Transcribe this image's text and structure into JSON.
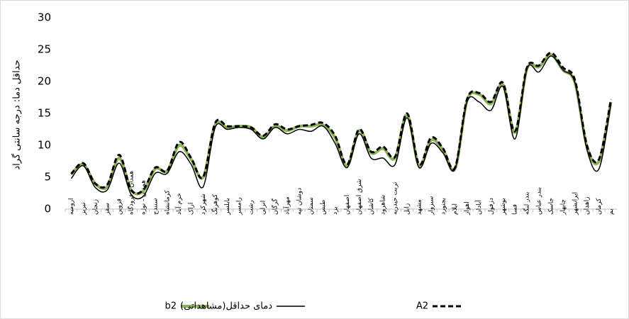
{
  "chart_data": {
    "type": "line",
    "y_label": "حداقل دما: درجه سانتی گراد",
    "categories": [
      "ارومیه",
      "تبریز",
      "زنجان",
      "سقز",
      "قزوین",
      "همدان - فرودگاه",
      "همدان - نوژه",
      "سنندج",
      "کرمانشاه",
      "خرم آباد",
      "اراک",
      "شهرکرد",
      "کوهرنگ",
      "بابلسر",
      "رامسر",
      "رشت",
      "انزلی",
      "گرگان",
      "مهرآباد",
      "دوشان تپه",
      "سمنان",
      "طبس",
      "یزد",
      "اصفهان",
      "شرق اصفهان",
      "کاشان",
      "شاهرود",
      "تربت حیدریه",
      "زابل",
      "مشهد",
      "سبزوار",
      "بجنورد",
      "ایلام",
      "اهواز",
      "آبادان",
      "دزفول",
      "بوشهر",
      "فسا",
      "بندر لنگه",
      "بندر عباس",
      "جاسک",
      "چابهار",
      "ایرانشهر",
      "زاهدان",
      "کرمان",
      "بم"
    ],
    "series": [
      {
        "name": "b2",
        "color": "#8db359",
        "style": "solid",
        "width": 4,
        "values": [
          5.5,
          7,
          4,
          3.5,
          8,
          3,
          2.8,
          6.3,
          6,
          10,
          7.8,
          5,
          13.2,
          12.8,
          13,
          12.8,
          11.3,
          13,
          12.3,
          13,
          13,
          13.2,
          11.2,
          6.8,
          12.3,
          8.8,
          9.5,
          8,
          14.8,
          6.8,
          10.8,
          9.3,
          6.3,
          17,
          18,
          16.5,
          19.5,
          12,
          22,
          22.3,
          24.2,
          21.8,
          19.8,
          9.8,
          7.5,
          16.8
        ]
      },
      {
        "name": "دمای حداقل(مشاهداتی)",
        "color": "#000000",
        "style": "solid",
        "width": 1.5,
        "values": [
          4.8,
          6.8,
          3.4,
          3,
          7.2,
          2.3,
          2,
          5.6,
          5.6,
          9,
          7,
          3.5,
          12.8,
          12.5,
          12.8,
          12.5,
          11,
          12.8,
          11.8,
          12.5,
          12.2,
          13,
          10.3,
          6.5,
          11.8,
          8,
          8,
          7,
          14.3,
          6.5,
          10.3,
          8.8,
          6.3,
          16.8,
          16.8,
          15.5,
          19.2,
          11,
          22,
          21.5,
          24,
          21.8,
          19.8,
          9.3,
          6.3,
          16.5
        ]
      },
      {
        "name": "A2",
        "color": "#000000",
        "style": "dashed",
        "width": 3,
        "values": [
          5.5,
          7.2,
          4,
          3.8,
          8.5,
          3,
          3,
          6.5,
          6,
          10.5,
          8,
          5,
          13.5,
          13,
          13,
          12.8,
          11.5,
          13.3,
          12.5,
          13,
          13.2,
          13.5,
          11.5,
          7,
          12.5,
          9,
          9.8,
          8.2,
          15,
          7,
          11.2,
          9.5,
          6.5,
          17.2,
          18.2,
          16.8,
          19.8,
          12.2,
          22.2,
          22.5,
          24.5,
          22.2,
          20.2,
          10,
          7.8,
          17.2
        ]
      }
    ],
    "ylim": [
      0,
      30
    ],
    "yticks": [
      0,
      5,
      10,
      15,
      20,
      25,
      30
    ],
    "grid": false
  }
}
